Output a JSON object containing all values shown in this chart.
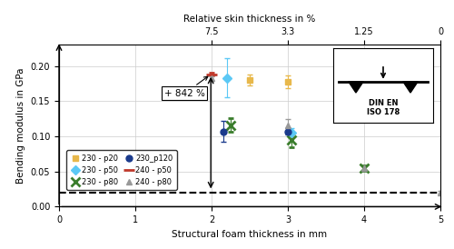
{
  "xlabel": "Structural foam thickness in mm",
  "ylabel": "Bending modulus in GPa",
  "top_xlabel": "Relative skin thickness in %",
  "xlim": [
    0,
    5
  ],
  "ylim": [
    0,
    0.23
  ],
  "dashed_line_y": 0.02,
  "series": {
    "230-p20": {
      "x": [
        2.5,
        3.0
      ],
      "y": [
        0.18,
        0.178
      ],
      "yerr": [
        0.008,
        0.009
      ],
      "color": "#e8b84b",
      "marker": "s",
      "markersize": 5,
      "label": "230 - p20"
    },
    "230-p50": {
      "x": [
        2.2,
        3.05
      ],
      "y": [
        0.183,
        0.105
      ],
      "yerr": [
        0.028,
        0.007
      ],
      "color": "#5bc8f5",
      "marker": "D",
      "markersize": 5,
      "label": "230 - p50"
    },
    "230-p80": {
      "x": [
        2.25,
        3.05,
        4.0
      ],
      "y": [
        0.116,
        0.095,
        0.055
      ],
      "yerr": [
        0.01,
        0.01,
        0.004
      ],
      "color": "#3a7d2c",
      "marker": "x",
      "markersize": 7,
      "markeredgewidth": 2.0,
      "label": "230 - p80"
    },
    "230-p120": {
      "x": [
        2.15,
        3.0
      ],
      "y": [
        0.107,
        0.107
      ],
      "yerr": [
        0.015,
        0.004
      ],
      "color": "#1a3a8c",
      "marker": "o",
      "markersize": 5,
      "label": "230_p120"
    },
    "240-p50": {
      "x": [
        2.0
      ],
      "y": [
        0.188
      ],
      "yerr": [
        0.002
      ],
      "color": "#c0392b",
      "marker": "_",
      "markersize": 8,
      "markeredgewidth": 2.0,
      "label": "240 - p50"
    },
    "240-p80": {
      "x": [
        2.0,
        3.0,
        4.0,
        5.0
      ],
      "y": [
        0.182,
        0.115,
        0.055,
        0.02
      ],
      "yerr": [
        0.003,
        0.01,
        0.004,
        0.002
      ],
      "color": "#999999",
      "marker": "^",
      "markersize": 5,
      "label": "240 - p80"
    }
  },
  "background_color": "#ffffff",
  "grid_color": "#cccccc"
}
